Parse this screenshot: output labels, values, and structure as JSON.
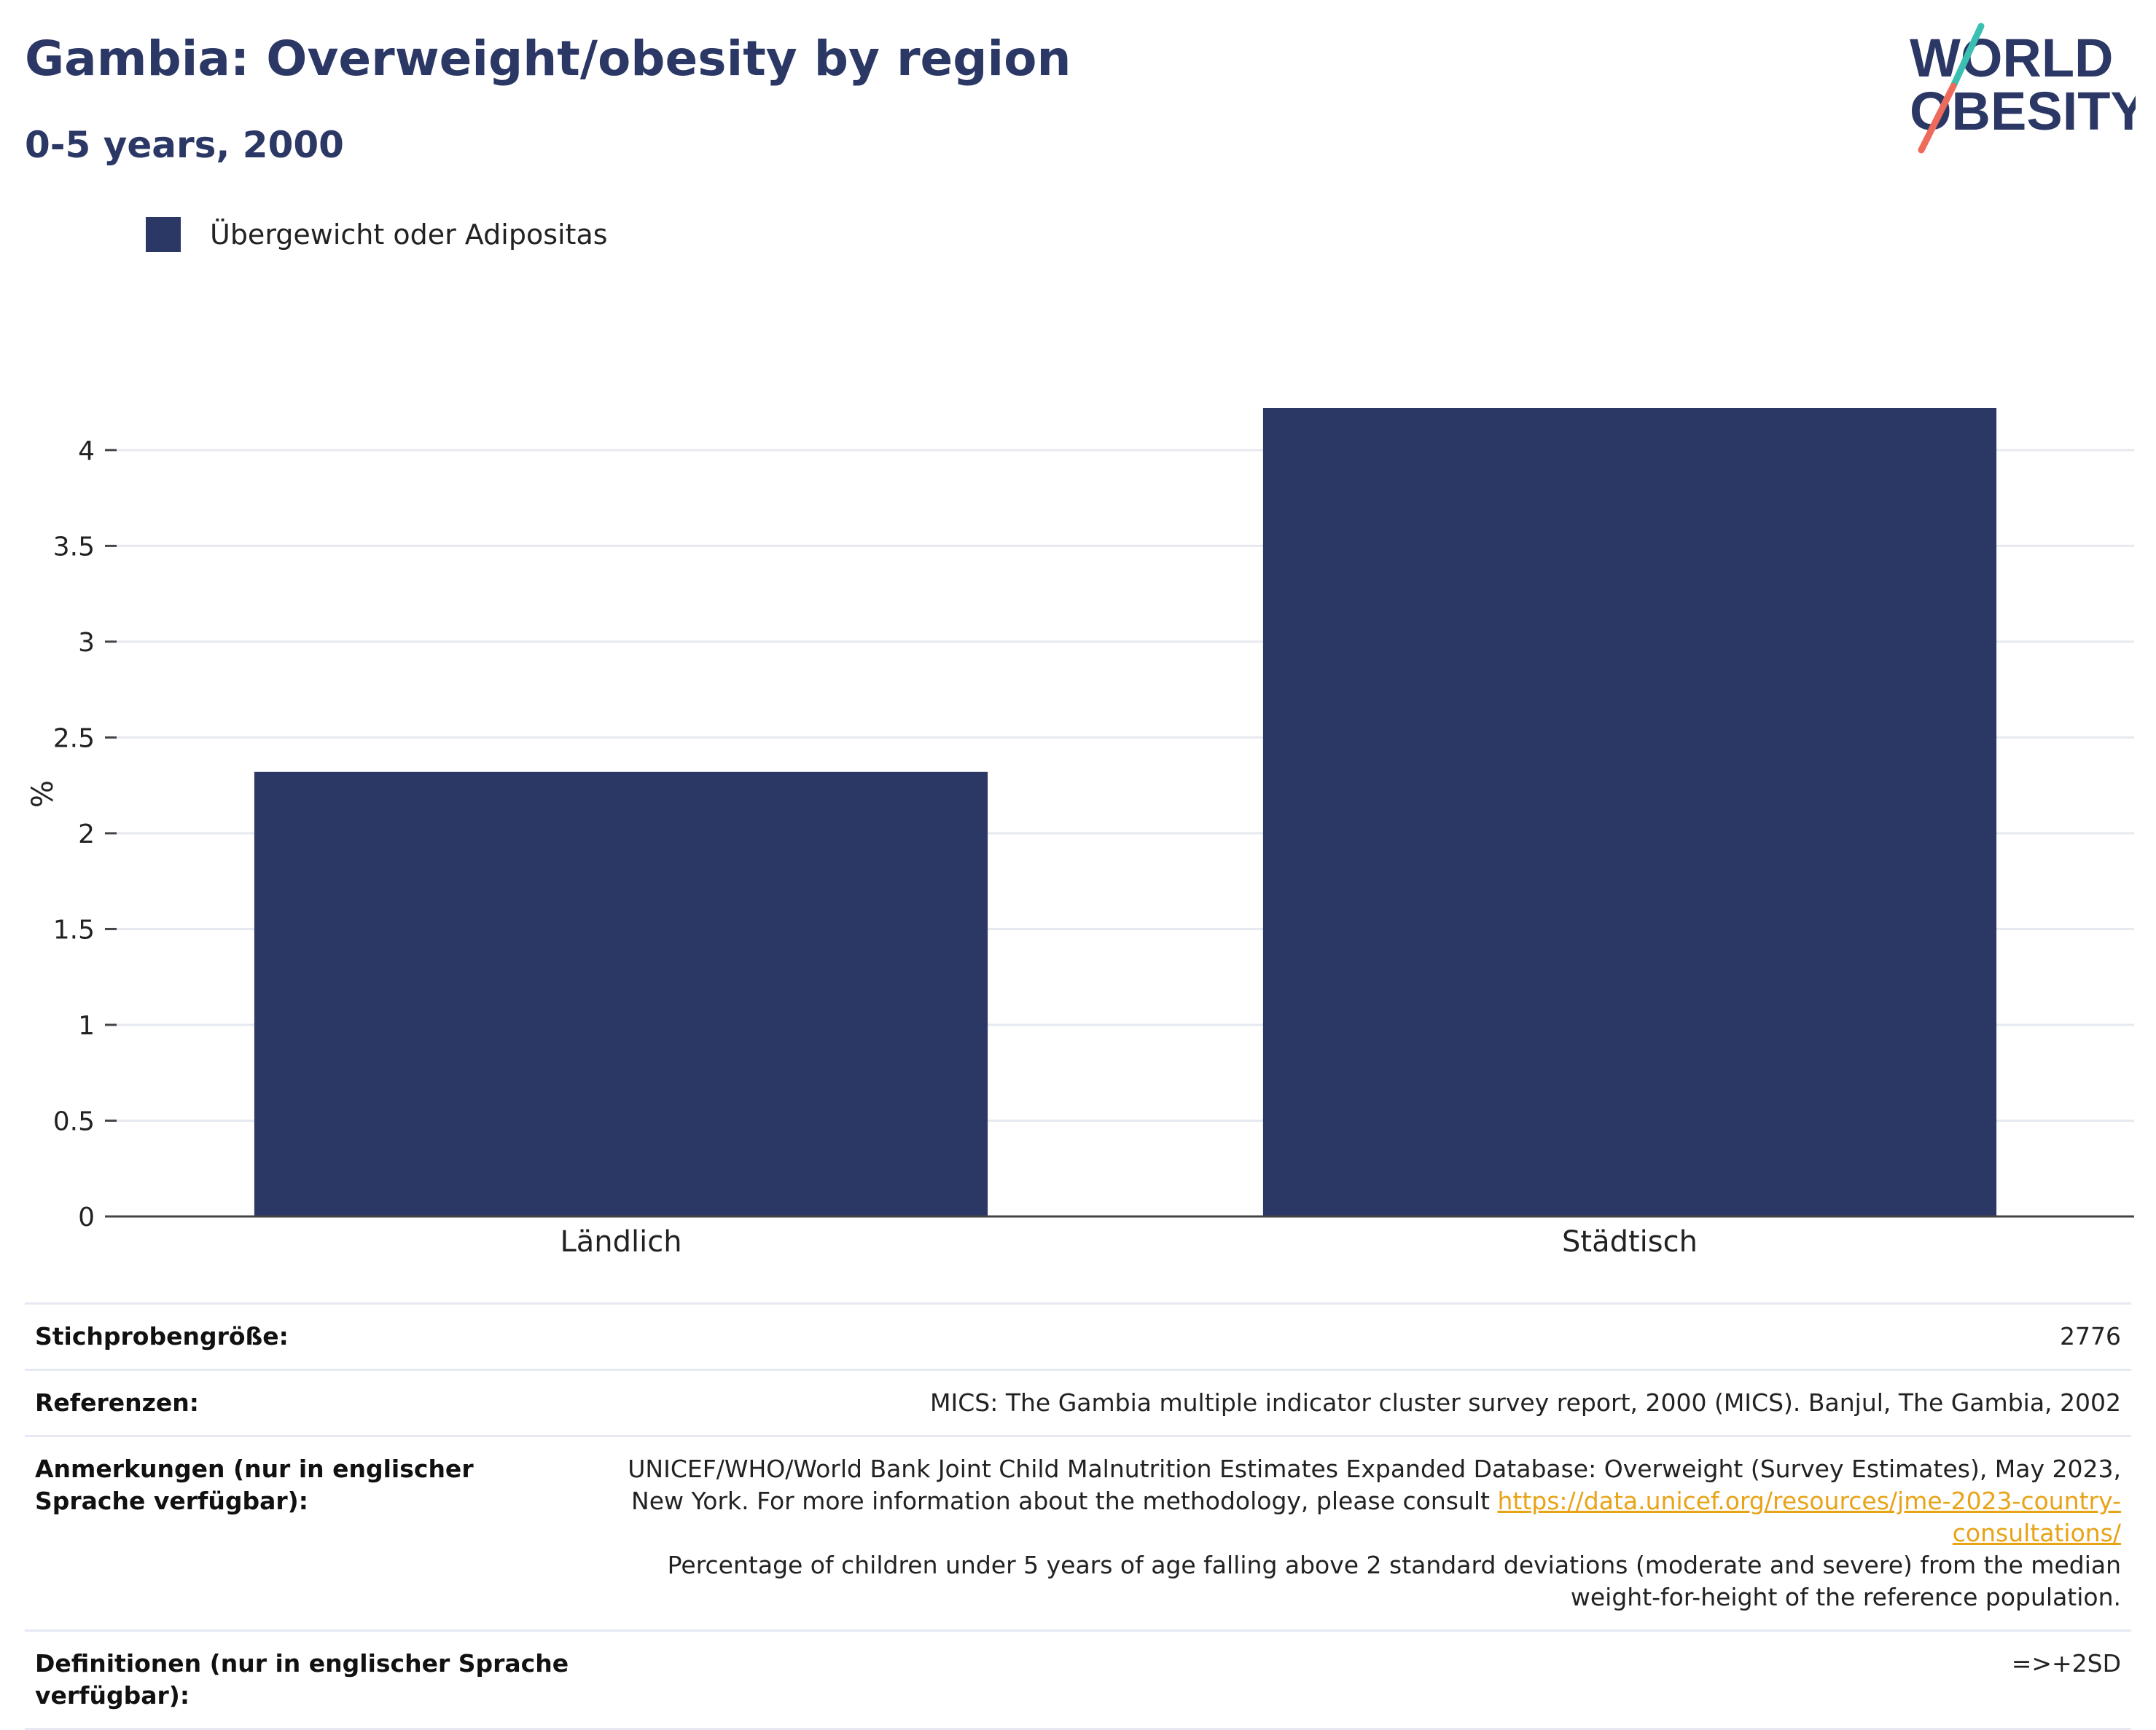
{
  "header": {
    "title": "Gambia: Overweight/obesity by region",
    "subtitle": "0-5 years, 2000"
  },
  "logo": {
    "line1": "WORLD",
    "line2": "OBESITY"
  },
  "legend": {
    "label": "Übergewicht oder Adipositas",
    "color": "#2b3764"
  },
  "chart_data": {
    "type": "bar",
    "categories": [
      "Ländlich",
      "Städtisch"
    ],
    "series": [
      {
        "name": "Übergewicht oder Adipositas",
        "values": [
          2.32,
          4.22
        ],
        "color": "#2b3764"
      }
    ],
    "ylabel": "%",
    "xlabel": "",
    "ylim": [
      0,
      4.22
    ],
    "yticks": [
      0,
      0.5,
      1,
      1.5,
      2,
      2.5,
      3,
      3.5,
      4
    ],
    "ytick_labels": [
      "0",
      "0.5",
      "1",
      "1.5",
      "2",
      "2.5",
      "3",
      "3.5",
      "4"
    ],
    "grid": true,
    "legend_position": "top-left"
  },
  "info": {
    "sample_label": "Stichprobengröße:",
    "sample_value": "2776",
    "references_label": "Referenzen:",
    "references_value": "MICS: The Gambia multiple indicator cluster survey report, 2000 (MICS). Banjul, The Gambia, 2002",
    "notes_label": "Anmerkungen (nur in englischer Sprache verfügbar):",
    "notes_text1": "UNICEF/WHO/World Bank Joint Child Malnutrition Estimates Expanded Database: Overweight (Survey Estimates), May 2023, New York. For more information about the methodology, please consult",
    "notes_link": "https://data.unicef.org/resources/jme-2023-country-consultations/",
    "notes_text2": "Percentage of children under 5 years of age falling above 2 standard deviations (moderate and severe) from the median weight-for-height of the reference population.",
    "definitions_label": "Definitionen (nur in englischer Sprache verfügbar):",
    "definitions_value": "=>+2SD"
  }
}
